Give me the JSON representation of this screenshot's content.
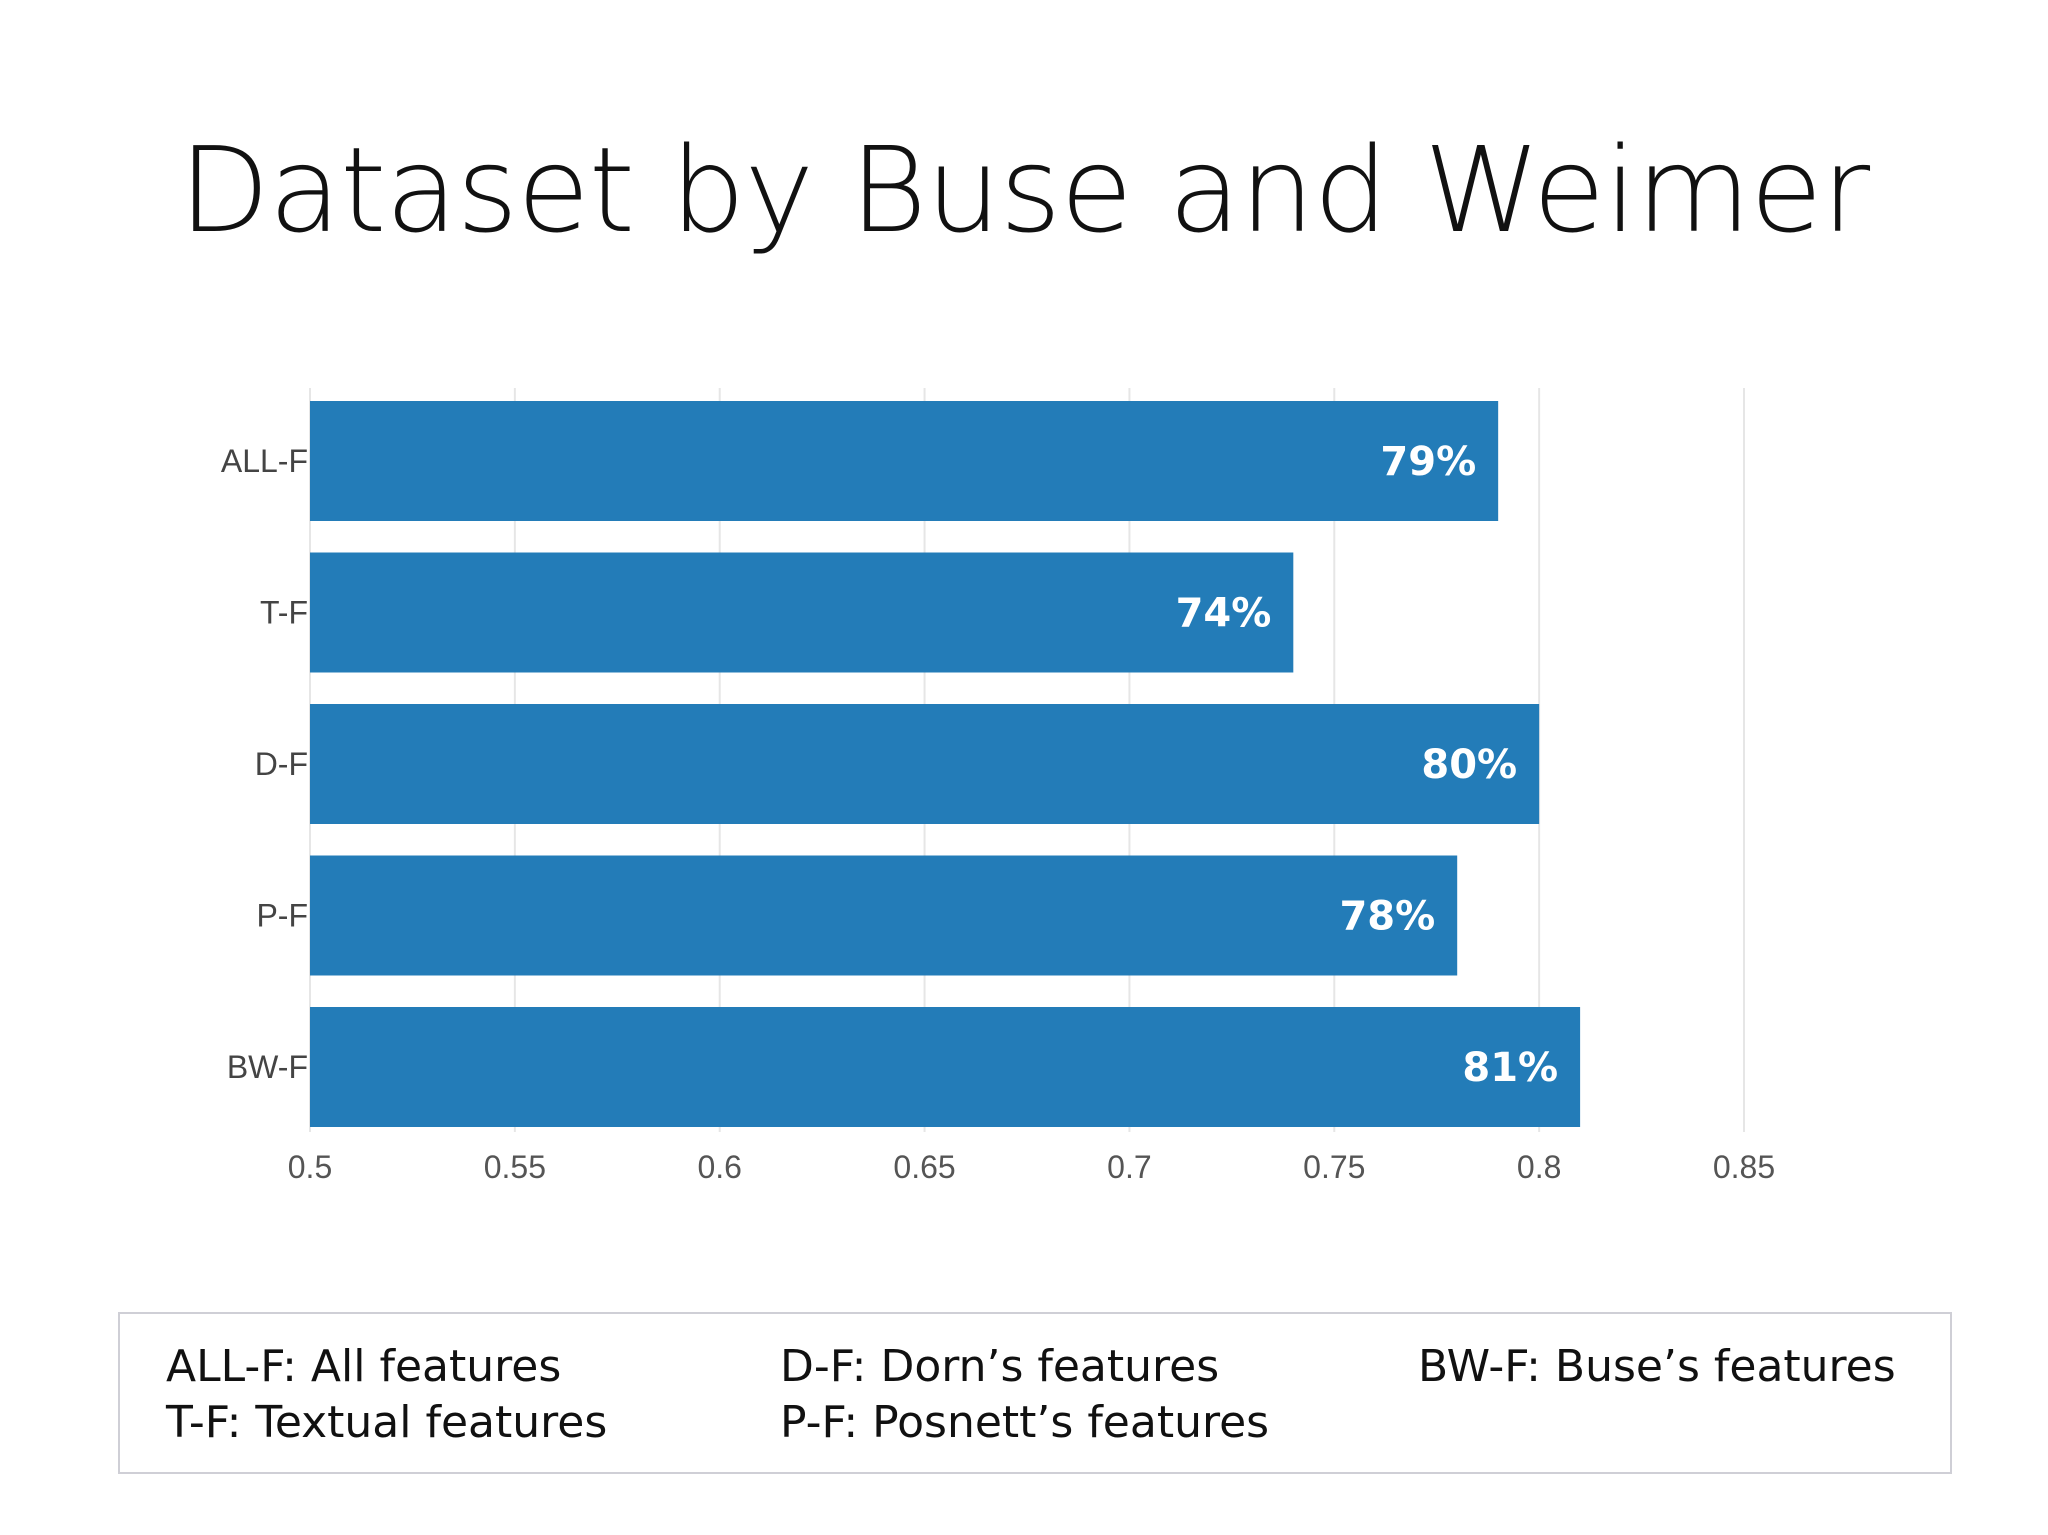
{
  "slide": {
    "title": "Dataset by Buse and Weimer"
  },
  "chart_data": {
    "type": "bar",
    "orientation": "horizontal",
    "categories": [
      "ALL-F",
      "T-F",
      "D-F",
      "P-F",
      "BW-F"
    ],
    "values": [
      0.79,
      0.74,
      0.8,
      0.78,
      0.81
    ],
    "data_labels": [
      "79%",
      "74%",
      "80%",
      "78%",
      "81%"
    ],
    "xlim": [
      0.5,
      0.85
    ],
    "xticks": [
      "0.5",
      "0.55",
      "0.6",
      "0.65",
      "0.7",
      "0.75",
      "0.8",
      "0.85"
    ],
    "grid": "vertical",
    "bar_color": "#237cb8",
    "label_color": "#ffffff"
  },
  "legend": {
    "items": [
      "ALL-F: All features",
      "T-F: Textual features",
      "D-F: Dorn’s features",
      "P-F: Posnett’s features",
      "BW-F: Buse’s features"
    ]
  }
}
